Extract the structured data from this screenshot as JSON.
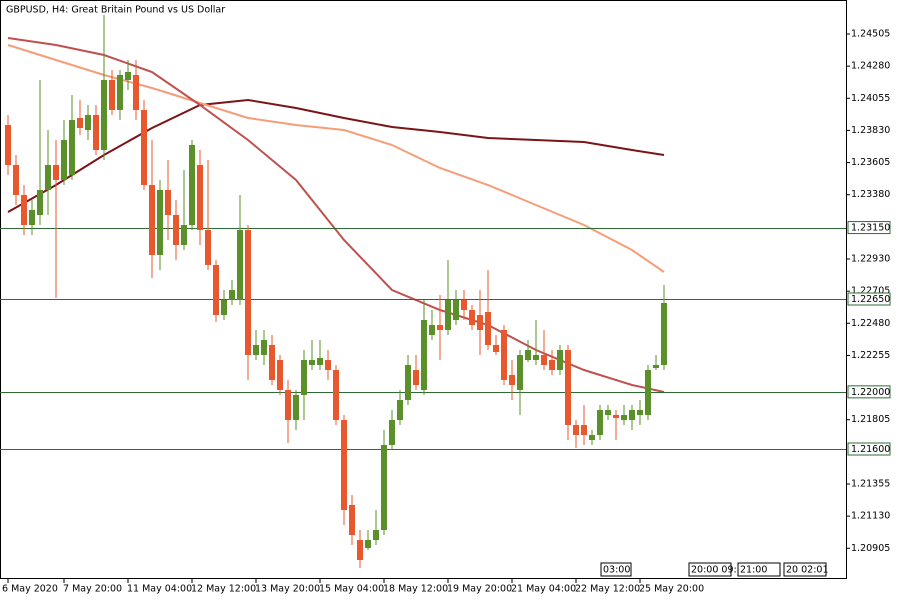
{
  "chart_data": {
    "type": "candlestick",
    "title": "GBPUSD, H4:  Great Britain Pound vs US Dollar",
    "categories": [
      "6 May 2020",
      null,
      null,
      null,
      null,
      null,
      null,
      "7 May 20:00",
      null,
      null,
      null,
      null,
      null,
      null,
      null,
      "11 May 04:00",
      null,
      null,
      null,
      null,
      null,
      null,
      null,
      "12 May 12:00",
      null,
      null,
      null,
      null,
      null,
      null,
      null,
      "13 May 20:00",
      null,
      null,
      null,
      null,
      null,
      null,
      null,
      "15 May 04:00",
      null,
      null,
      null,
      null,
      null,
      null,
      null,
      "18 May 12:00",
      null,
      null,
      null,
      null,
      null,
      null,
      null,
      "19 May 20:00",
      null,
      null,
      null,
      null,
      null,
      null,
      null,
      "21 May 04:00",
      null,
      null,
      null,
      null,
      null,
      null,
      null,
      "22 May 12:00",
      null,
      null,
      null,
      null,
      null,
      null,
      null,
      "25 May 20:00",
      null,
      null,
      null
    ],
    "ohlc": [
      [
        1.23868,
        1.23938,
        1.23518,
        1.23588
      ],
      [
        1.23588,
        1.23658,
        1.23308,
        1.23378
      ],
      [
        1.23378,
        1.23448,
        1.23098,
        1.23168
      ],
      [
        1.23168,
        1.23343,
        1.23098,
        1.23273
      ],
      [
        1.23238,
        1.24183,
        1.23168,
        1.23413
      ],
      [
        1.23413,
        1.23833,
        1.23238,
        1.23588
      ],
      [
        1.23588,
        1.23763,
        1.22657,
        1.23483
      ],
      [
        1.23483,
        1.23903,
        1.23448,
        1.23763
      ],
      [
        1.23518,
        1.24078,
        1.23483,
        1.23903
      ],
      [
        1.23917,
        1.24043,
        1.23798,
        1.23847
      ],
      [
        1.23833,
        1.24008,
        1.23763,
        1.23938
      ],
      [
        1.23938,
        1.24008,
        1.23658,
        1.23693
      ],
      [
        1.23693,
        1.24638,
        1.23623,
        1.24183
      ],
      [
        1.24183,
        1.24253,
        1.23938,
        1.23973
      ],
      [
        1.23973,
        1.24253,
        1.23903,
        1.24218
      ],
      [
        1.24183,
        1.24323,
        1.24113,
        1.24239
      ],
      [
        1.24218,
        1.24323,
        1.23903,
        1.23973
      ],
      [
        1.23973,
        1.24043,
        1.23413,
        1.23448
      ],
      [
        1.23448,
        1.23763,
        1.22797,
        1.22958
      ],
      [
        1.22958,
        1.23483,
        1.22853,
        1.23413
      ],
      [
        1.23413,
        1.23623,
        1.23063,
        1.23238
      ],
      [
        1.23238,
        1.23343,
        1.22923,
        1.23028
      ],
      [
        1.23028,
        1.23553,
        1.22993,
        1.23168
      ],
      [
        1.23168,
        1.23763,
        1.23133,
        1.23728
      ],
      [
        1.23588,
        1.23693,
        1.23028,
        1.23133
      ],
      [
        1.23133,
        1.23623,
        1.22853,
        1.22888
      ],
      [
        1.22888,
        1.22923,
        1.22489,
        1.22538
      ],
      [
        1.22538,
        1.22713,
        1.22503,
        1.22643
      ],
      [
        1.22643,
        1.22783,
        1.22608,
        1.22713
      ],
      [
        1.22643,
        1.23378,
        1.22608,
        1.23133
      ],
      [
        1.23133,
        1.23168,
        1.22083,
        1.22258
      ],
      [
        1.22258,
        1.22433,
        1.22223,
        1.22328
      ],
      [
        1.22258,
        1.22433,
        1.22188,
        1.22363
      ],
      [
        1.22328,
        1.22398,
        1.22048,
        1.22083
      ],
      [
        1.22223,
        1.22258,
        1.21978,
        1.22013
      ],
      [
        1.22013,
        1.22083,
        1.21642,
        1.21803
      ],
      [
        1.21803,
        1.22013,
        1.21733,
        1.21978
      ],
      [
        1.21978,
        1.22293,
        1.21803,
        1.22223
      ],
      [
        1.22188,
        1.22363,
        1.22153,
        1.22223
      ],
      [
        1.22188,
        1.22363,
        1.22153,
        1.22237
      ],
      [
        1.22223,
        1.22293,
        1.22083,
        1.22153
      ],
      [
        1.22153,
        1.22188,
        1.21768,
        1.21803
      ],
      [
        1.21803,
        1.21838,
        1.21068,
        1.21173
      ],
      [
        1.21208,
        1.21278,
        1.20928,
        1.20998
      ],
      [
        1.20963,
        1.21033,
        1.20767,
        1.20823
      ],
      [
        1.20907,
        1.21033,
        1.20893,
        1.20963
      ],
      [
        1.20963,
        1.21173,
        1.20928,
        1.21033
      ],
      [
        1.21033,
        1.21733,
        1.20998,
        1.21628
      ],
      [
        1.21628,
        1.21873,
        1.21593,
        1.21803
      ],
      [
        1.21803,
        1.22013,
        1.21768,
        1.21943
      ],
      [
        1.21943,
        1.22258,
        1.21908,
        1.22188
      ],
      [
        1.22153,
        1.22258,
        1.22013,
        1.22048
      ],
      [
        1.22013,
        1.22643,
        1.21978,
        1.22503
      ],
      [
        1.22398,
        1.22573,
        1.22363,
        1.22468
      ],
      [
        1.22468,
        1.22678,
        1.22223,
        1.22433
      ],
      [
        1.22433,
        1.22923,
        1.22398,
        1.22643
      ],
      [
        1.22503,
        1.22713,
        1.22468,
        1.22643
      ],
      [
        1.22643,
        1.22713,
        1.22503,
        1.22573
      ],
      [
        1.22573,
        1.22608,
        1.22433,
        1.22468
      ],
      [
        1.22538,
        1.22713,
        1.22258,
        1.22433
      ],
      [
        1.22559,
        1.22853,
        1.22293,
        1.22328
      ],
      [
        1.22328,
        1.22398,
        1.22258,
        1.22279
      ],
      [
        1.22433,
        1.22468,
        1.22048,
        1.22083
      ],
      [
        1.22118,
        1.22223,
        1.21943,
        1.22048
      ],
      [
        1.22013,
        1.22293,
        1.21838,
        1.22258
      ],
      [
        1.22223,
        1.22363,
        1.22209,
        1.22293
      ],
      [
        1.22223,
        1.22503,
        1.22188,
        1.22258
      ],
      [
        1.22258,
        1.22433,
        1.22153,
        1.22188
      ],
      [
        1.22223,
        1.22293,
        1.22118,
        1.22153
      ],
      [
        1.22153,
        1.22328,
        1.22118,
        1.22293
      ],
      [
        1.22293,
        1.22328,
        1.21663,
        1.21768
      ],
      [
        1.21768,
        1.21803,
        1.21607,
        1.21698
      ],
      [
        1.21768,
        1.21908,
        1.21628,
        1.21698
      ],
      [
        1.21663,
        1.21733,
        1.21628,
        1.21698
      ],
      [
        1.21698,
        1.21908,
        1.21663,
        1.21873
      ],
      [
        1.21838,
        1.21908,
        1.21803,
        1.21873
      ],
      [
        1.21838,
        1.21873,
        1.21663,
        1.21817
      ],
      [
        1.21803,
        1.21908,
        1.21768,
        1.21838
      ],
      [
        1.21803,
        1.21908,
        1.21733,
        1.21873
      ],
      [
        1.21838,
        1.21943,
        1.21768,
        1.21873
      ],
      [
        1.21838,
        1.22188,
        1.21803,
        1.22153
      ],
      [
        1.22167,
        1.22258,
        1.22153,
        1.22188
      ],
      [
        1.22188,
        1.22748,
        1.22153,
        1.22622
      ]
    ],
    "up_color": "#5a8f29",
    "down_color": "#e8582f",
    "series": [
      {
        "color": "#7b1416",
        "x": [
          0,
          6,
          12,
          18,
          24,
          30,
          36,
          42,
          48,
          54,
          60,
          66,
          72,
          78,
          82
        ],
        "values": [
          1.23259,
          1.23448,
          1.23658,
          1.23847,
          1.24008,
          1.24043,
          1.23987,
          1.23917,
          1.23854,
          1.23819,
          1.23777,
          1.23763,
          1.23749,
          1.23693,
          1.23658
        ]
      },
      {
        "color": "#f59d78",
        "x": [
          0,
          6,
          12,
          18,
          24,
          30,
          36,
          42,
          48,
          54,
          60,
          66,
          72,
          78,
          82
        ],
        "values": [
          1.24428,
          1.24323,
          1.24218,
          1.24127,
          1.24022,
          1.23917,
          1.23868,
          1.23833,
          1.23728,
          1.23567,
          1.23448,
          1.23308,
          1.23168,
          1.22993,
          1.22839
        ]
      },
      {
        "color": "#c0504d",
        "x": [
          0,
          6,
          12,
          18,
          24,
          30,
          36,
          42,
          48,
          54,
          60,
          66,
          72,
          78,
          82
        ],
        "values": [
          1.24477,
          1.24428,
          1.24358,
          1.24239,
          1.24008,
          1.23763,
          1.23483,
          1.23063,
          1.22713,
          1.22573,
          1.22468,
          1.22293,
          1.22153,
          1.22048,
          1.21999
        ]
      }
    ],
    "levels": [
      {
        "value": 1.2315,
        "label": "1.23150"
      },
      {
        "value": 1.2265,
        "label": "1.22650"
      },
      {
        "value": 1.22,
        "label": "1.22000"
      },
      {
        "value": 1.216,
        "label": "1.21600"
      }
    ],
    "level_color": "#2e6b34",
    "ylim": [
      1.20697,
      1.24743
    ],
    "yticks": [
      {
        "value": 1.24505,
        "label": "1.24505"
      },
      {
        "value": 1.2428,
        "label": "1.24280"
      },
      {
        "value": 1.24055,
        "label": "1.24055"
      },
      {
        "value": 1.2383,
        "label": "1.23830"
      },
      {
        "value": 1.23605,
        "label": "1.23605"
      },
      {
        "value": 1.2338,
        "label": "1.23380"
      },
      {
        "value": 1.2293,
        "label": "1.22930"
      },
      {
        "value": 1.22705,
        "label": "1.22705"
      },
      {
        "value": 1.2248,
        "label": "1.22480"
      },
      {
        "value": 1.22255,
        "label": "1.22255"
      },
      {
        "value": 1.21805,
        "label": "1.21805"
      },
      {
        "value": 1.21355,
        "label": "1.21355"
      },
      {
        "value": 1.2113,
        "label": "1.21130"
      },
      {
        "value": 1.20905,
        "label": "1.20905"
      }
    ],
    "scale_labels": [
      "03:00",
      "20:00 09:",
      "21:00",
      "20 02:01"
    ]
  }
}
